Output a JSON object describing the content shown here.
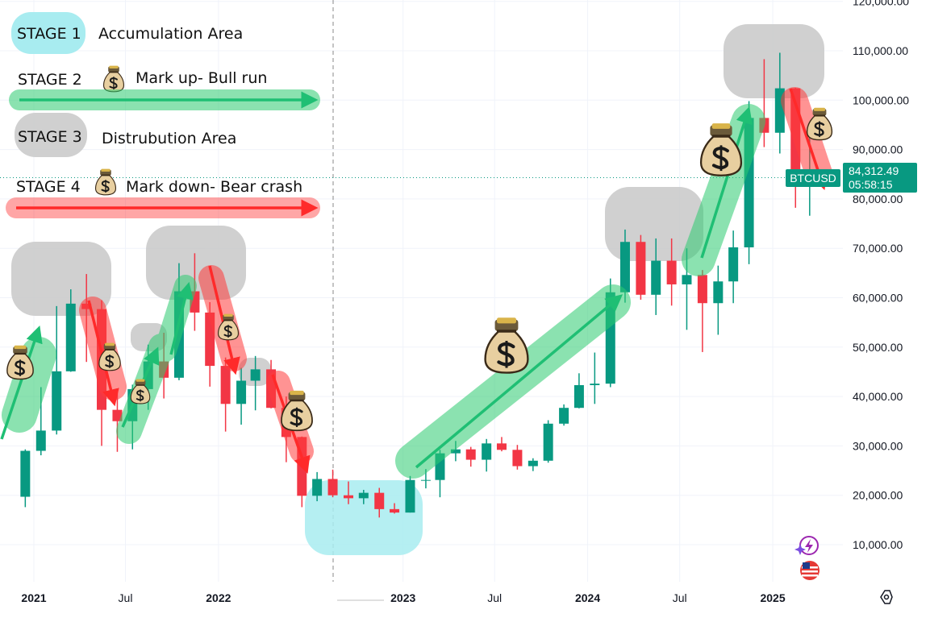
{
  "legend": [
    {
      "stage": "STAGE 1",
      "text": "Accumulation Area"
    },
    {
      "stage": "STAGE 2",
      "text": "Mark up- Bull run"
    },
    {
      "stage": "STAGE 3",
      "text": "Distrubution Area"
    },
    {
      "stage": "STAGE 4",
      "text": "Mark down- Bear crash"
    }
  ],
  "price_tag": {
    "symbol": "BTCUSD",
    "price": "84,312.49",
    "countdown": "05:58:15"
  },
  "colors": {
    "up": "#089981",
    "down": "#f23645",
    "markup": "#2ecc71",
    "markdown": "#ff3b3b",
    "accumulation": "#a8ecf0",
    "distribution": "#c8c8c8",
    "tag": "#089981"
  },
  "chart_data": {
    "type": "candlestick",
    "symbol": "BTCUSD",
    "y_ticks": [
      10000,
      20000,
      30000,
      40000,
      50000,
      60000,
      70000,
      80000,
      90000,
      100000,
      110000,
      120000
    ],
    "y_tick_labels": [
      "10,000.00",
      "20,000.00",
      "30,000.00",
      "40,000.00",
      "50,000.00",
      "60,000.00",
      "70,000.00",
      "80,000.00",
      "90,000.00",
      "100,000.00",
      "110,000.00",
      "120,000.00"
    ],
    "x_tick_labels": [
      {
        "label": "2021",
        "date": "2021-01",
        "major": true
      },
      {
        "label": "Jul",
        "date": "2021-07",
        "major": false
      },
      {
        "label": "2022",
        "date": "2022-01",
        "major": true
      },
      {
        "label": "2023",
        "date": "2023-01",
        "major": true
      },
      {
        "label": "Jul",
        "date": "2023-07",
        "major": false
      },
      {
        "label": "2024",
        "date": "2024-01",
        "major": true
      },
      {
        "label": "Jul",
        "date": "2024-07",
        "major": false
      },
      {
        "label": "2025",
        "date": "2025-01",
        "major": true
      }
    ],
    "last_price": 84312.49,
    "candles": [
      [
        "2020-12",
        19700,
        29300,
        17600,
        29000
      ],
      [
        "2021-01",
        29000,
        41900,
        28100,
        33100
      ],
      [
        "2021-02",
        33100,
        58300,
        32300,
        45100
      ],
      [
        "2021-03",
        45100,
        61700,
        45000,
        58800
      ],
      [
        "2021-04",
        58800,
        64800,
        47000,
        57700
      ],
      [
        "2021-05",
        57700,
        59500,
        30000,
        37300
      ],
      [
        "2021-06",
        37300,
        41300,
        28800,
        35000
      ],
      [
        "2021-07",
        35000,
        42400,
        29300,
        41500
      ],
      [
        "2021-08",
        41500,
        50500,
        37300,
        47100
      ],
      [
        "2021-09",
        47100,
        52900,
        39600,
        43800
      ],
      [
        "2021-10",
        43800,
        67000,
        43300,
        61300
      ],
      [
        "2021-11",
        61300,
        69000,
        53300,
        57000
      ],
      [
        "2021-12",
        57000,
        59100,
        42000,
        46200
      ],
      [
        "2022-01",
        46200,
        47900,
        32900,
        38500
      ],
      [
        "2022-02",
        38500,
        45800,
        34300,
        43200
      ],
      [
        "2022-03",
        43200,
        48200,
        37200,
        45500
      ],
      [
        "2022-04",
        45500,
        47400,
        37600,
        37700
      ],
      [
        "2022-05",
        37700,
        40000,
        26700,
        31800
      ],
      [
        "2022-06",
        31800,
        31900,
        17600,
        19900
      ],
      [
        "2022-07",
        19900,
        24700,
        18800,
        23300
      ],
      [
        "2022-08",
        23300,
        25200,
        19600,
        20000
      ],
      [
        "2022-09",
        20000,
        22800,
        18200,
        19400
      ],
      [
        "2022-10",
        19400,
        21100,
        18200,
        20500
      ],
      [
        "2022-11",
        20500,
        21500,
        15500,
        17200
      ],
      [
        "2022-12",
        17200,
        18400,
        16300,
        16500
      ],
      [
        "2023-01",
        16500,
        23900,
        16500,
        23100
      ],
      [
        "2023-02",
        23100,
        25300,
        21400,
        23100
      ],
      [
        "2023-03",
        23100,
        29200,
        19600,
        28500
      ],
      [
        "2023-04",
        28500,
        31000,
        26900,
        29300
      ],
      [
        "2023-05",
        29300,
        29800,
        25800,
        27200
      ],
      [
        "2023-06",
        27200,
        31400,
        24800,
        30500
      ],
      [
        "2023-07",
        30500,
        31800,
        28900,
        29200
      ],
      [
        "2023-08",
        29200,
        30200,
        25200,
        25900
      ],
      [
        "2023-09",
        25900,
        27500,
        24900,
        27000
      ],
      [
        "2023-10",
        27000,
        35200,
        26600,
        34500
      ],
      [
        "2023-11",
        34500,
        38400,
        34100,
        37700
      ],
      [
        "2023-12",
        37700,
        44700,
        37600,
        42300
      ],
      [
        "2024-01",
        42300,
        48900,
        38500,
        42600
      ],
      [
        "2024-02",
        42600,
        63900,
        41900,
        61100
      ],
      [
        "2024-03",
        61100,
        73800,
        59000,
        71300
      ],
      [
        "2024-04",
        71300,
        72700,
        59600,
        60600
      ],
      [
        "2024-05",
        60600,
        72000,
        56500,
        67500
      ],
      [
        "2024-06",
        67500,
        72000,
        58400,
        62700
      ],
      [
        "2024-07",
        62700,
        70000,
        53500,
        64600
      ],
      [
        "2024-08",
        64600,
        65600,
        49000,
        58900
      ],
      [
        "2024-09",
        58900,
        66500,
        52500,
        63300
      ],
      [
        "2024-10",
        63300,
        73600,
        58900,
        70200
      ],
      [
        "2024-11",
        70200,
        99800,
        66800,
        96400
      ],
      [
        "2024-12",
        96400,
        108300,
        90500,
        93400
      ],
      [
        "2025-01",
        93400,
        109600,
        89200,
        102400
      ],
      [
        "2025-02",
        102400,
        102500,
        78200,
        84300
      ],
      [
        "2025-03",
        84300,
        95000,
        76600,
        84312.49
      ]
    ]
  }
}
